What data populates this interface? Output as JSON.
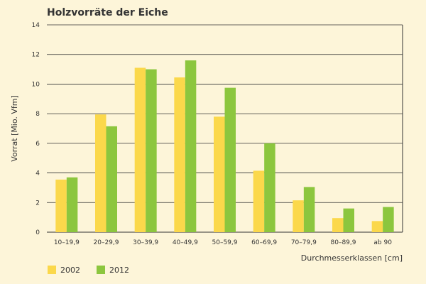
{
  "chart_data": {
    "type": "bar",
    "title": "Holzvorräte der Eiche",
    "xlabel": "Durchmesserklassen [cm]",
    "ylabel": "Vorrat [Mio. Vfm]",
    "ylim": [
      0,
      14
    ],
    "yticks": [
      "0",
      "2",
      "4",
      "6",
      "8",
      "10",
      "12",
      "14"
    ],
    "categories": [
      "10–19,9",
      "20–29,9",
      "30–39,9",
      "40–49,9",
      "50–59,9",
      "60–69,9",
      "70–79,9",
      "80–89,9",
      "ab 90"
    ],
    "series": [
      {
        "name": "2002",
        "color": "#fbd84b",
        "values": [
          3.55,
          7.95,
          11.1,
          10.45,
          7.8,
          4.15,
          2.15,
          0.95,
          0.75
        ]
      },
      {
        "name": "2012",
        "color": "#8cc63e",
        "values": [
          3.7,
          7.15,
          11.0,
          11.6,
          9.75,
          6.0,
          3.05,
          1.6,
          1.7
        ]
      }
    ],
    "grid": true,
    "legend": "bottom-left"
  }
}
